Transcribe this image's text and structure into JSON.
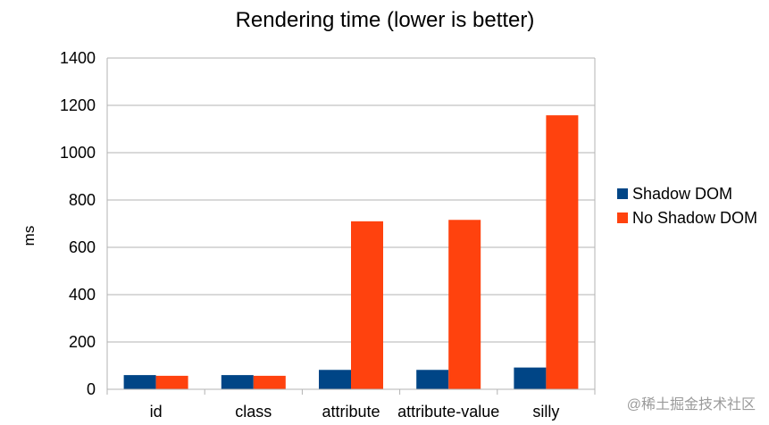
{
  "chart_data": {
    "type": "bar",
    "title": "Rendering time (lower is better)",
    "xlabel": "",
    "ylabel": "ms",
    "ylim": [
      0,
      1400
    ],
    "yticks": [
      0,
      200,
      400,
      600,
      800,
      1000,
      1200,
      1400
    ],
    "grid": "horizontal",
    "legend_position": "right",
    "categories": [
      "id",
      "class",
      "attribute",
      "attribute-value",
      "silly"
    ],
    "series": [
      {
        "name": "Shadow DOM",
        "color": "#004586",
        "values": [
          60,
          60,
          82,
          82,
          92
        ]
      },
      {
        "name": "No Shadow DOM",
        "color": "#ff420e",
        "values": [
          57,
          57,
          710,
          716,
          1158
        ]
      }
    ]
  },
  "watermark": "@稀土掘金技术社区"
}
